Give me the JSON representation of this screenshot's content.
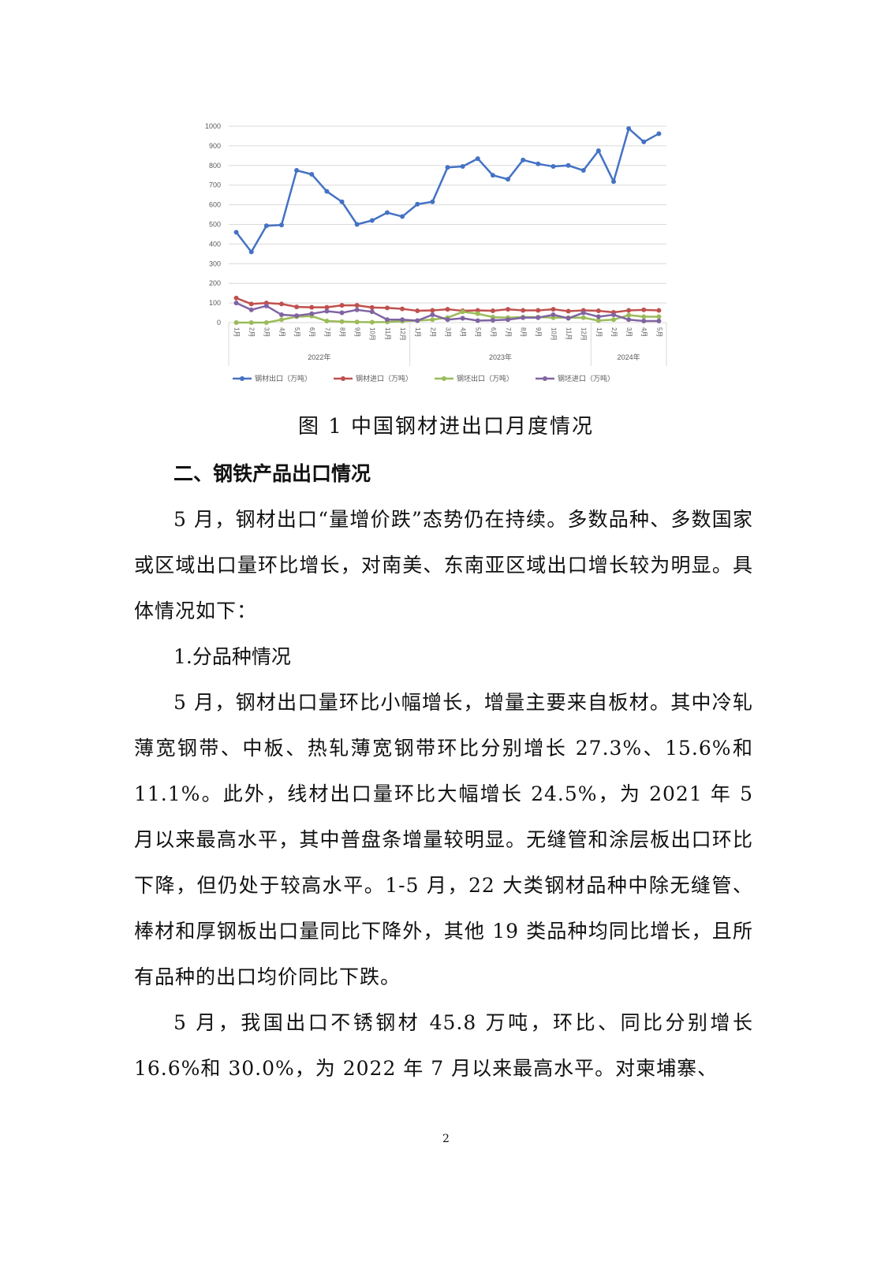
{
  "chart_data": {
    "type": "line",
    "categories": [
      "1月",
      "2月",
      "3月",
      "4月",
      "5月",
      "6月",
      "7月",
      "8月",
      "9月",
      "10月",
      "11月",
      "12月",
      "1月",
      "2月",
      "3月",
      "4月",
      "5月",
      "6月",
      "7月",
      "8月",
      "9月",
      "10月",
      "11月",
      "12月",
      "1月",
      "2月",
      "3月",
      "4月",
      "5月"
    ],
    "year_groups": [
      {
        "label": "2022年",
        "count": 12
      },
      {
        "label": "2023年",
        "count": 12
      },
      {
        "label": "2024年",
        "count": 5
      }
    ],
    "ylim": [
      0,
      1000
    ],
    "yticks": [
      0,
      100,
      200,
      300,
      400,
      500,
      600,
      700,
      800,
      900,
      1000
    ],
    "grid": true,
    "legend_position": "bottom",
    "series": [
      {
        "name": "钢材出口（万吨）",
        "color": "#4472c4",
        "values": [
          460,
          360,
          493,
          497,
          775,
          755,
          668,
          615,
          500,
          520,
          560,
          540,
          603,
          615,
          790,
          795,
          835,
          750,
          730,
          828,
          808,
          795,
          800,
          775,
          875,
          718,
          988,
          920,
          962
        ]
      },
      {
        "name": "钢材进口（万吨）",
        "color": "#c0504d",
        "values": [
          125,
          95,
          100,
          95,
          80,
          78,
          78,
          88,
          88,
          77,
          75,
          70,
          60,
          62,
          68,
          60,
          62,
          60,
          68,
          62,
          62,
          68,
          58,
          62,
          60,
          52,
          62,
          65,
          62
        ]
      },
      {
        "name": "钢坯出口（万吨）",
        "color": "#9bbb59",
        "values": [
          0,
          0,
          0,
          15,
          30,
          33,
          8,
          5,
          3,
          2,
          3,
          7,
          10,
          15,
          25,
          55,
          45,
          28,
          25,
          28,
          28,
          25,
          25,
          25,
          10,
          15,
          38,
          30,
          30
        ]
      },
      {
        "name": "钢坯进口（万吨）",
        "color": "#8064a2",
        "values": [
          100,
          65,
          85,
          40,
          35,
          45,
          58,
          50,
          65,
          55,
          15,
          15,
          10,
          40,
          15,
          22,
          10,
          12,
          15,
          25,
          25,
          40,
          22,
          50,
          30,
          40,
          15,
          8,
          8
        ]
      }
    ]
  },
  "caption": "图 1  中国钢材进出口月度情况",
  "heading": "二、钢铁产品出口情况",
  "para1": "5 月，钢材出口“量增价跌”态势仍在持续。多数品种、多数国家或区域出口量环比增长，对南美、东南亚区域出口增长较为明显。具体情况如下：",
  "subheading": "1.分品种情况",
  "para2": "5 月，钢材出口量环比小幅增长，增量主要来自板材。其中冷轧薄宽钢带、中板、热轧薄宽钢带环比分别增长 27.3%、15.6%和 11.1%。此外，线材出口量环比大幅增长 24.5%，为 2021 年 5 月以来最高水平，其中普盘条增量较明显。无缝管和涂层板出口环比下降，但仍处于较高水平。1-5 月，22 大类钢材品种中除无缝管、棒材和厚钢板出口量同比下降外，其他 19 类品种均同比增长，且所有品种的出口均价同比下跌。",
  "para3": "5 月，我国出口不锈钢材 45.8 万吨，环比、同比分别增长 16.6%和 30.0%，为 2022 年 7 月以来最高水平。对柬埔寨、",
  "page_number": "2"
}
